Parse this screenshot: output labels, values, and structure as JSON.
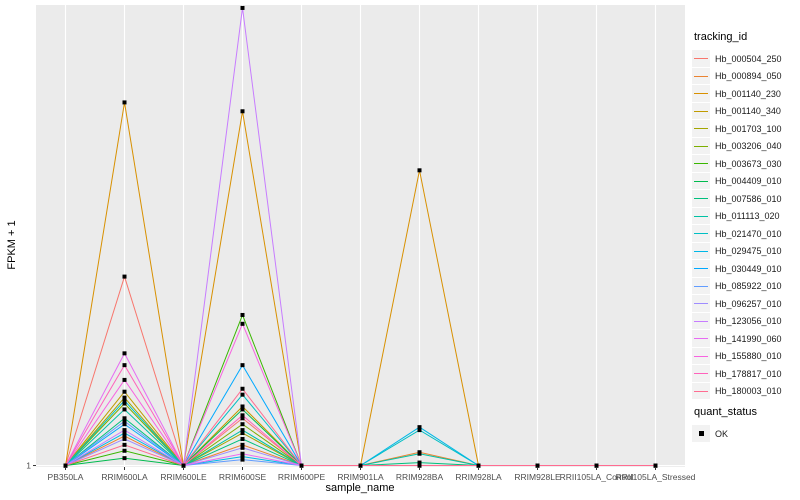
{
  "chart_data": {
    "type": "line",
    "title": "",
    "xlabel": "sample_name",
    "ylabel": "FPKM + 1",
    "y_ticks": [
      {
        "value": 1,
        "label": "1"
      }
    ],
    "ylim": [
      0.95,
      16.6
    ],
    "grid": true,
    "legend_position": "right",
    "categories": [
      "PB350LA",
      "RRIM600LA",
      "RRIM600LE",
      "RRIM600SE",
      "RRIM600PE",
      "RRIM901LA",
      "RRIM928BA",
      "RRIM928LA",
      "RRIM928LE",
      "RRII105LA_Control",
      "RRII105LA_Stressed"
    ],
    "legend_title": "tracking_id",
    "series": [
      {
        "name": "Hb_000504_250",
        "color": "#F8766D",
        "values": [
          1,
          7.4,
          1,
          2.6,
          1,
          1,
          1,
          1,
          1,
          1,
          1
        ]
      },
      {
        "name": "Hb_000894_050",
        "color": "#EA8331",
        "values": [
          1,
          2.0,
          1,
          1.7,
          1,
          1,
          1.45,
          1,
          1,
          1,
          1
        ]
      },
      {
        "name": "Hb_001140_230",
        "color": "#D89000",
        "values": [
          1,
          13.3,
          1,
          13.0,
          1,
          1,
          11.0,
          1,
          1,
          1,
          1
        ]
      },
      {
        "name": "Hb_001140_340",
        "color": "#C09B00",
        "values": [
          1,
          3.5,
          1,
          3.0,
          1,
          1,
          1,
          1,
          1,
          1,
          1
        ]
      },
      {
        "name": "Hb_001703_100",
        "color": "#A3A500",
        "values": [
          1,
          3.3,
          1,
          2.1,
          1,
          1,
          1,
          1,
          1,
          1,
          1
        ]
      },
      {
        "name": "Hb_003206_040",
        "color": "#7CAE00",
        "values": [
          1,
          3.1,
          1,
          2.4,
          1,
          1,
          1,
          1,
          1,
          1,
          1
        ]
      },
      {
        "name": "Hb_003673_030",
        "color": "#39B600",
        "values": [
          1,
          1.5,
          1,
          6.1,
          1,
          1,
          1,
          1,
          1,
          1,
          1
        ]
      },
      {
        "name": "Hb_004409_010",
        "color": "#00BB4E",
        "values": [
          1,
          1.25,
          1,
          2.9,
          1,
          1,
          1,
          1,
          1,
          1,
          1
        ]
      },
      {
        "name": "Hb_007586_010",
        "color": "#00BF7D",
        "values": [
          1,
          2.6,
          1,
          1.9,
          1,
          1,
          1.1,
          1,
          1,
          1,
          1
        ]
      },
      {
        "name": "Hb_011113_020",
        "color": "#00C1A3",
        "values": [
          1,
          2.9,
          1,
          2.2,
          1,
          1,
          1.4,
          1,
          1,
          1,
          1
        ]
      },
      {
        "name": "Hb_021470_010",
        "color": "#00BFC4",
        "values": [
          1,
          3.2,
          1,
          3.4,
          1,
          1,
          2.2,
          1,
          1,
          1,
          1
        ]
      },
      {
        "name": "Hb_029475_010",
        "color": "#00B8E7",
        "values": [
          1,
          2.1,
          1,
          1.3,
          1,
          1,
          2.3,
          1,
          1,
          1,
          1
        ]
      },
      {
        "name": "Hb_030449_010",
        "color": "#00A9FF",
        "values": [
          1,
          2.4,
          1,
          4.4,
          1,
          1,
          1,
          1,
          1,
          1,
          1
        ]
      },
      {
        "name": "Hb_085922_010",
        "color": "#619CFF",
        "values": [
          1,
          2.5,
          1,
          1.2,
          1,
          1,
          1,
          1,
          1,
          1,
          1
        ]
      },
      {
        "name": "Hb_096257_010",
        "color": "#9F8CFF",
        "values": [
          1,
          1.9,
          1,
          1.6,
          1,
          1,
          1,
          1,
          1,
          1,
          1
        ]
      },
      {
        "name": "Hb_123056_010",
        "color": "#C77CFF",
        "values": [
          1,
          2.2,
          1,
          16.5,
          1,
          1,
          1,
          1,
          1,
          1,
          1
        ]
      },
      {
        "name": "Hb_141990_060",
        "color": "#E76BF3",
        "values": [
          1,
          4.8,
          1,
          1.4,
          1,
          1,
          1,
          1,
          1,
          1,
          1
        ]
      },
      {
        "name": "Hb_155880_010",
        "color": "#F763E0",
        "values": [
          1,
          3.9,
          1,
          5.8,
          1,
          1,
          1,
          1,
          1,
          1,
          1
        ]
      },
      {
        "name": "Hb_178817_010",
        "color": "#FF62BC",
        "values": [
          1,
          4.4,
          1,
          2.7,
          1,
          1,
          1,
          1,
          1,
          1,
          1
        ]
      },
      {
        "name": "Hb_180003_010",
        "color": "#FF6C91",
        "values": [
          1,
          1.7,
          1,
          3.6,
          1,
          1,
          1,
          1,
          1,
          1,
          1
        ]
      }
    ],
    "point_legend_title": "quant_status",
    "point_legend_items": [
      "OK"
    ]
  }
}
